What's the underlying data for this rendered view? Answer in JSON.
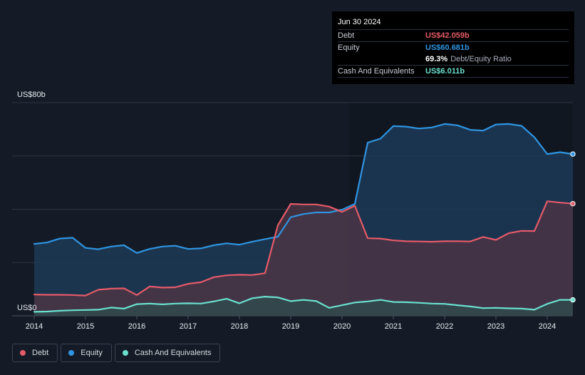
{
  "tooltip": {
    "date": "Jun 30 2024",
    "rows": [
      {
        "label": "Debt",
        "value": "US$42.059b"
      },
      {
        "label": "Equity",
        "value": "US$60.681b"
      },
      {
        "ratio_value": "69.3%",
        "ratio_label": "Debt/Equity Ratio"
      },
      {
        "label": "Cash And Equivalents",
        "value": "US$6.011b"
      }
    ]
  },
  "legend": [
    "Debt",
    "Equity",
    "Cash And Equivalents"
  ],
  "colors": {
    "debt": "#e45a68",
    "equity": "#2f94e1",
    "cash": "#6ae0cf",
    "background": "#151b26"
  },
  "chart_data": {
    "type": "area",
    "ylabel_top": "US$80b",
    "ylabel_bottom": "US$0",
    "ylim": [
      0,
      80
    ],
    "xlim": [
      2014.0,
      2024.5
    ],
    "x_ticks": [
      "2014",
      "2015",
      "2016",
      "2017",
      "2018",
      "2019",
      "2020",
      "2021",
      "2022",
      "2023",
      "2024"
    ],
    "series": [
      {
        "name": "Equity",
        "x": [
          2014.0,
          2014.25,
          2014.5,
          2014.75,
          2015.0,
          2015.25,
          2015.5,
          2015.75,
          2016.0,
          2016.25,
          2016.5,
          2016.75,
          2017.0,
          2017.25,
          2017.5,
          2017.75,
          2018.0,
          2018.25,
          2018.5,
          2018.75,
          2019.0,
          2019.25,
          2019.5,
          2019.75,
          2020.0,
          2020.25,
          2020.5,
          2020.75,
          2021.0,
          2021.25,
          2021.5,
          2021.75,
          2022.0,
          2022.25,
          2022.5,
          2022.75,
          2023.0,
          2023.25,
          2023.5,
          2023.75,
          2024.0,
          2024.25,
          2024.5
        ],
        "values": [
          27.0,
          27.5,
          29.0,
          29.3,
          25.5,
          25.0,
          26.0,
          26.5,
          23.6,
          25.1,
          26.0,
          26.3,
          25.1,
          25.3,
          26.5,
          27.2,
          26.7,
          27.8,
          28.8,
          29.7,
          37.0,
          38.2,
          38.8,
          38.8,
          39.8,
          42.0,
          65.0,
          66.5,
          71.2,
          71.0,
          70.3,
          70.7,
          72.0,
          71.5,
          69.8,
          69.5,
          71.8,
          72.0,
          71.3,
          67.0,
          60.7,
          61.4,
          60.7
        ]
      },
      {
        "name": "Debt",
        "x": [
          2014.0,
          2014.25,
          2014.5,
          2014.75,
          2015.0,
          2015.25,
          2015.5,
          2015.75,
          2016.0,
          2016.25,
          2016.5,
          2016.75,
          2017.0,
          2017.25,
          2017.5,
          2017.75,
          2018.0,
          2018.25,
          2018.5,
          2018.75,
          2019.0,
          2019.25,
          2019.5,
          2019.75,
          2020.0,
          2020.25,
          2020.5,
          2020.75,
          2021.0,
          2021.25,
          2021.5,
          2021.75,
          2022.0,
          2022.25,
          2022.5,
          2022.75,
          2023.0,
          2023.25,
          2023.5,
          2023.75,
          2024.0,
          2024.25,
          2024.5
        ],
        "values": [
          8.0,
          7.9,
          7.9,
          7.8,
          7.6,
          9.8,
          10.2,
          10.3,
          7.8,
          11.0,
          10.6,
          10.7,
          12.0,
          12.6,
          14.5,
          15.2,
          15.4,
          15.3,
          16.0,
          34.0,
          42.0,
          41.8,
          41.8,
          41.0,
          39.0,
          41.3,
          29.1,
          29.0,
          28.3,
          28.0,
          27.9,
          27.8,
          28.0,
          28.0,
          27.9,
          29.6,
          28.5,
          31.0,
          31.9,
          31.8,
          43.0,
          42.5,
          42.1
        ]
      },
      {
        "name": "Cash And Equivalents",
        "x": [
          2014.0,
          2014.25,
          2014.5,
          2014.75,
          2015.0,
          2015.25,
          2015.5,
          2015.75,
          2016.0,
          2016.25,
          2016.5,
          2016.75,
          2017.0,
          2017.25,
          2017.5,
          2017.75,
          2018.0,
          2018.25,
          2018.5,
          2018.75,
          2019.0,
          2019.25,
          2019.5,
          2019.75,
          2020.0,
          2020.25,
          2020.5,
          2020.75,
          2021.0,
          2021.25,
          2021.5,
          2021.75,
          2022.0,
          2022.25,
          2022.5,
          2022.75,
          2023.0,
          2023.25,
          2023.5,
          2023.75,
          2024.0,
          2024.25,
          2024.5
        ],
        "values": [
          1.5,
          1.6,
          1.9,
          2.1,
          2.2,
          2.3,
          3.1,
          2.7,
          4.4,
          4.6,
          4.3,
          4.6,
          4.7,
          4.6,
          5.4,
          6.4,
          4.7,
          6.6,
          7.2,
          6.9,
          5.5,
          6.0,
          5.5,
          3.0,
          4.0,
          5.0,
          5.4,
          6.0,
          5.2,
          5.1,
          4.9,
          4.6,
          4.5,
          4.0,
          3.5,
          2.9,
          3.0,
          2.8,
          2.7,
          2.3,
          4.5,
          6.0,
          6.0
        ]
      }
    ],
    "current_values": {
      "Equity": 60.681,
      "Debt": 42.059,
      "Cash And Equivalents": 6.011
    }
  }
}
